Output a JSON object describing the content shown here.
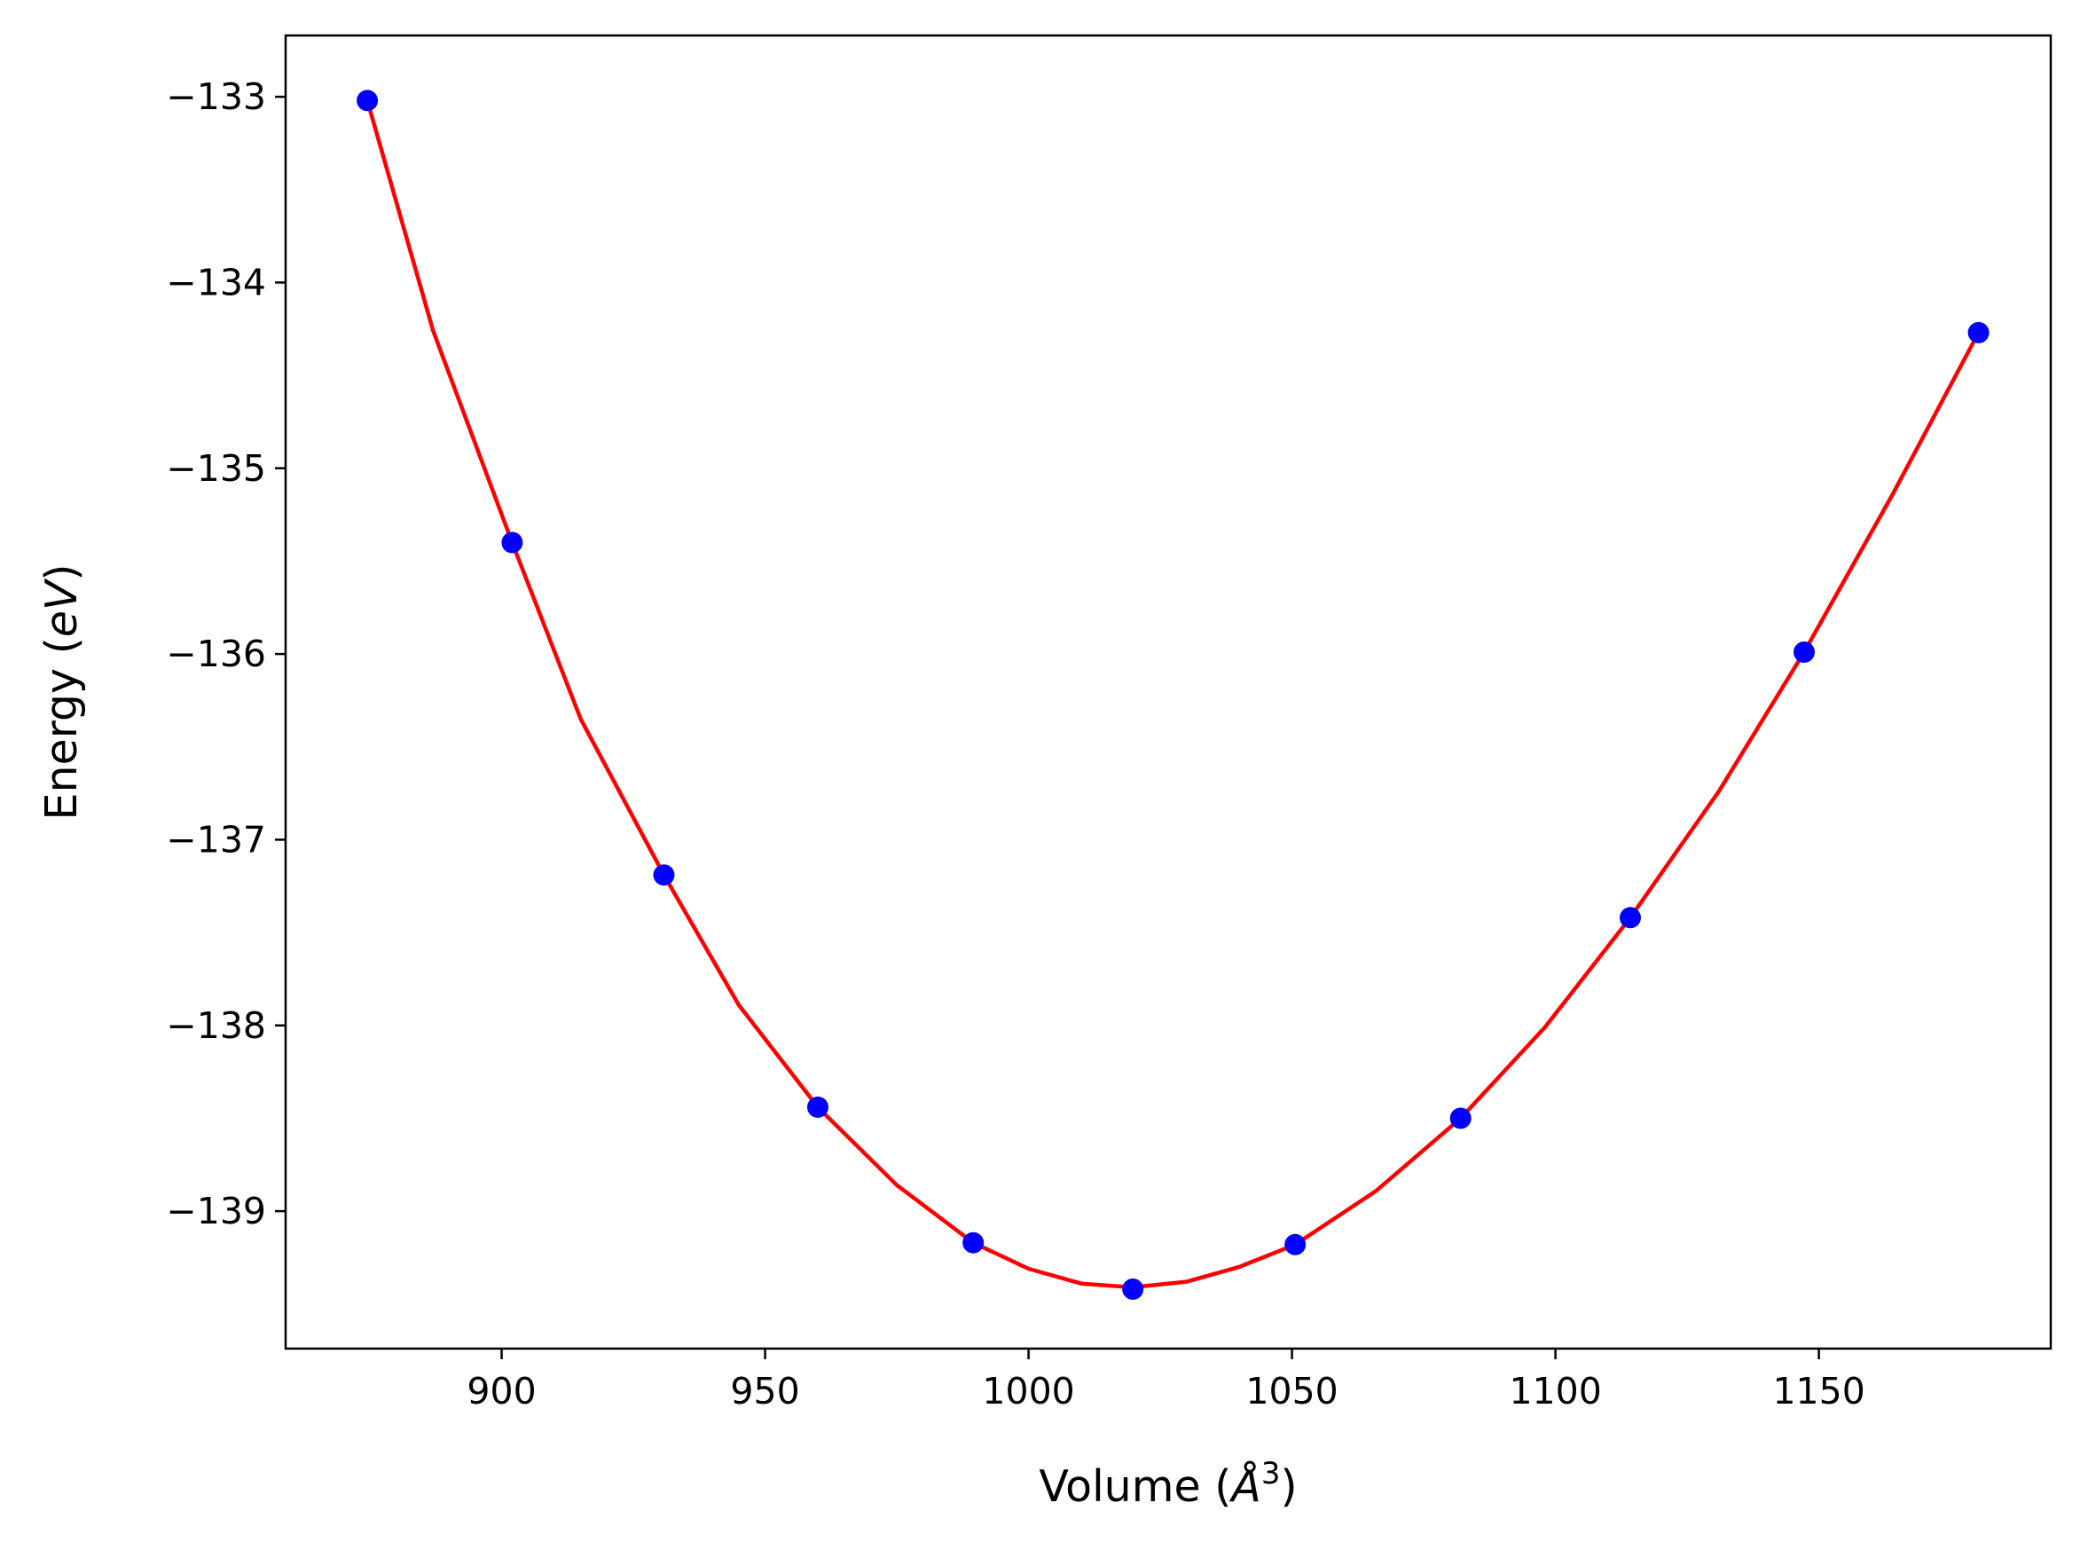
{
  "chart_data": {
    "type": "line",
    "title": "",
    "xlabel": {
      "prefix": "Volume (",
      "symbol": "Å",
      "sup": "3",
      "suffix": ")"
    },
    "ylabel": {
      "prefix": "Energy (",
      "symbol": "eV",
      "suffix": ")"
    },
    "xlim": [
      859,
      1194
    ],
    "ylim": [
      -139.74,
      -132.67
    ],
    "xticks": [
      900,
      950,
      1000,
      1050,
      1100,
      1150
    ],
    "xtick_labels": [
      "900",
      "950",
      "1000",
      "1050",
      "1100",
      "1150"
    ],
    "yticks": [
      -133,
      -134,
      -135,
      -136,
      -137,
      -138,
      -139
    ],
    "ytick_labels": [
      "−133",
      "−134",
      "−135",
      "−136",
      "−137",
      "−138",
      "−139"
    ],
    "grid": false,
    "series": [
      {
        "kind": "scatter",
        "color": "#0000ff",
        "x": [
          874.5,
          902.0,
          930.8,
          960.0,
          989.5,
          1019.8,
          1050.6,
          1082.0,
          1114.2,
          1147.2,
          1180.3
        ],
        "y": [
          -133.02,
          -135.4,
          -137.19,
          -138.44,
          -139.17,
          -139.42,
          -139.18,
          -138.5,
          -137.42,
          -135.99,
          -134.27
        ]
      },
      {
        "kind": "line",
        "color": "#ff0000",
        "x": [
          874.5,
          887.0,
          902.0,
          915.0,
          930.8,
          945.0,
          960.0,
          975.0,
          989.5,
          1000.0,
          1010.0,
          1019.8,
          1030.0,
          1040.0,
          1050.6,
          1066.0,
          1082.0,
          1098.0,
          1114.2,
          1131.0,
          1147.2,
          1164.0,
          1180.3
        ],
        "y": [
          -133.02,
          -134.26,
          -135.4,
          -136.35,
          -137.19,
          -137.89,
          -138.44,
          -138.86,
          -139.17,
          -139.31,
          -139.39,
          -139.41,
          -139.38,
          -139.3,
          -139.18,
          -138.89,
          -138.5,
          -138.01,
          -137.42,
          -136.74,
          -135.99,
          -135.14,
          -134.27
        ]
      }
    ]
  }
}
